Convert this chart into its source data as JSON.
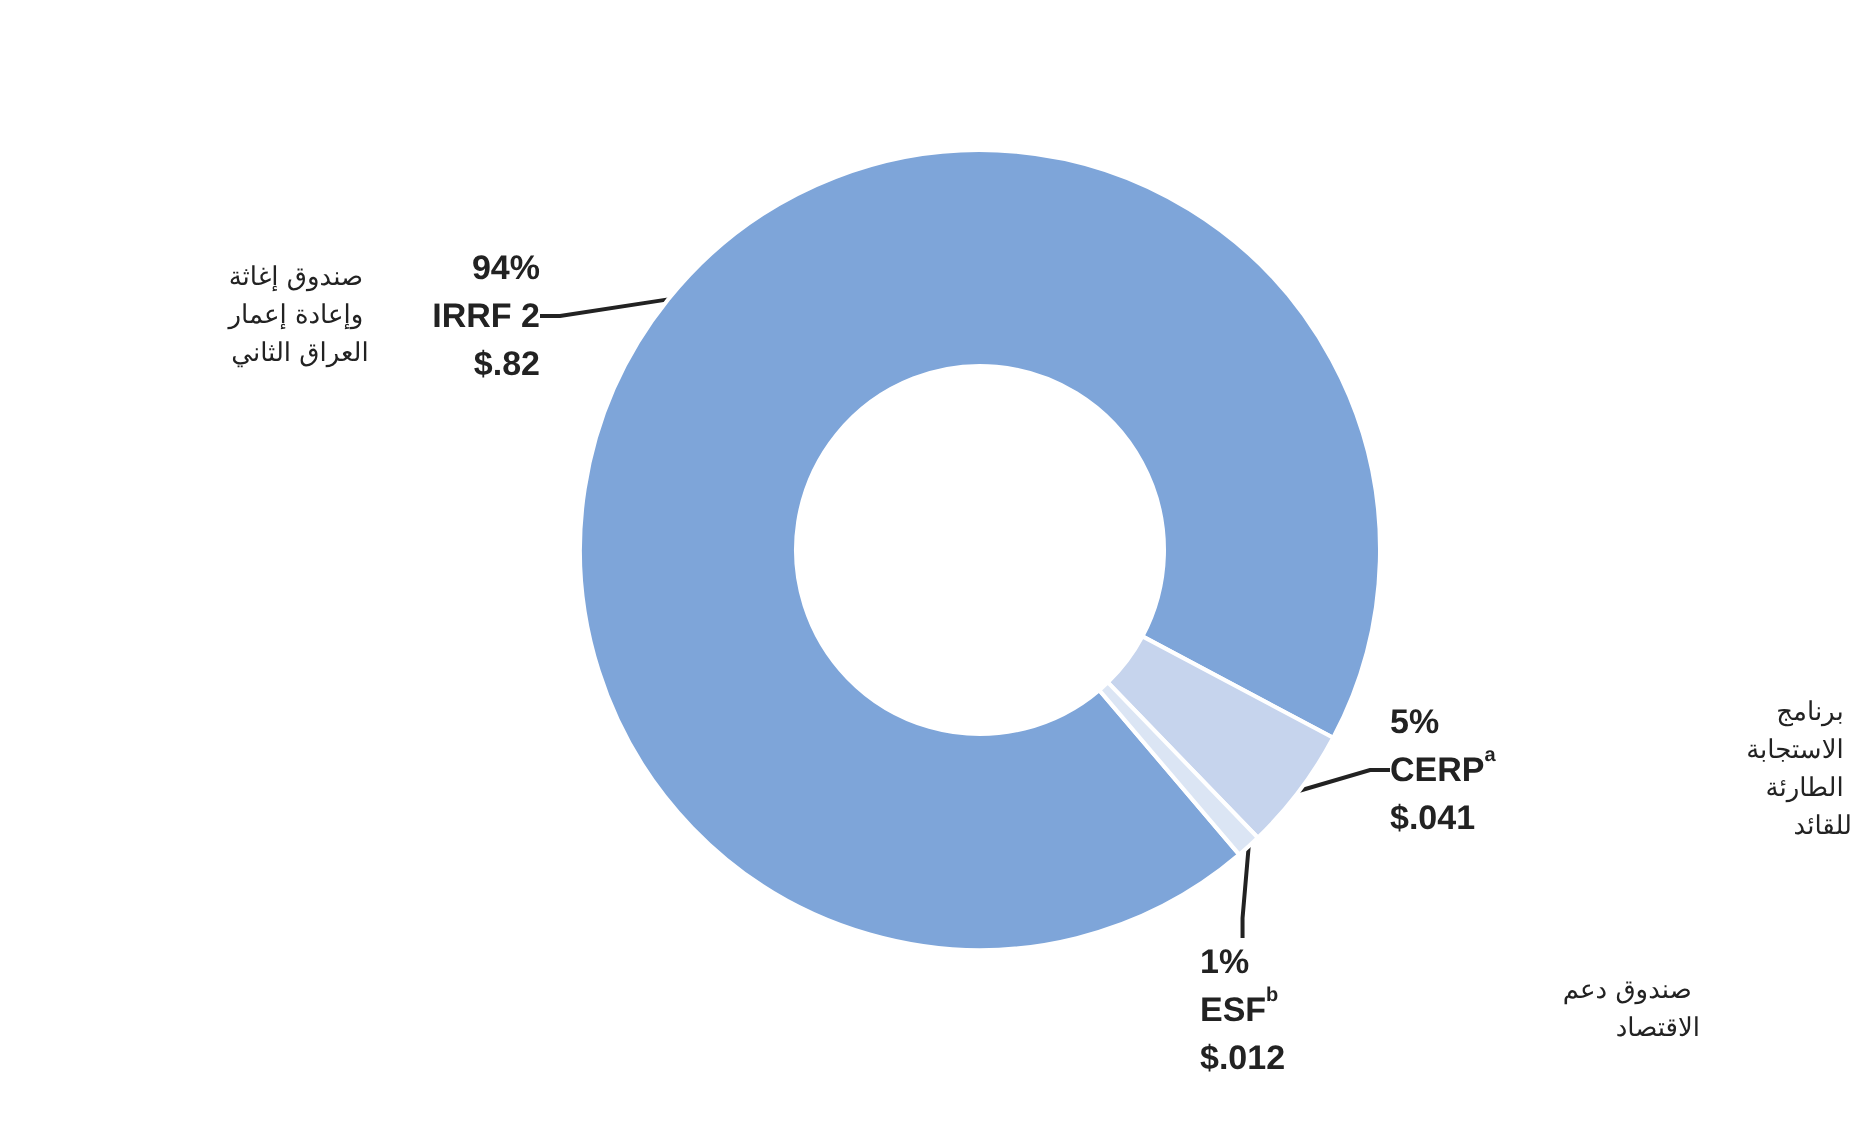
{
  "chart_data": {
    "type": "donut",
    "categories": [
      "IRRF 2",
      "CERP$^{a}$",
      "ESF$^{b}$"
    ],
    "values": [
      94,
      5,
      1
    ],
    "colors": [
      "#7ea5d9",
      "#c6d4ed",
      "#dbe5f4"
    ],
    "value_labels": [
      "94%",
      "5%",
      "1%"
    ],
    "annotations": [
      "$.82",
      "$.041",
      "$.012",
      "صندوق إغاثة وإعادة إعمار العراق الثاني",
      "برنامج الاستجابة الطارئة للقائد",
      "صندوق دعم الاقتصاد"
    ],
    "legend": false
  }
}
